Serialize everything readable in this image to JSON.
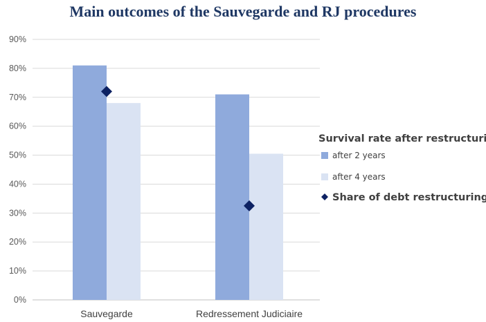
{
  "chart_data": {
    "type": "bar",
    "title": "Main outcomes of the Sauvegarde and RJ procedures",
    "categories": [
      "Sauvegarde",
      "Redressement Judiciaire"
    ],
    "series": [
      {
        "name": "after 2 years",
        "type": "bar",
        "color": "#8faadc",
        "values": [
          81,
          71
        ]
      },
      {
        "name": "after 4 years",
        "type": "bar",
        "color": "#dae3f3",
        "values": [
          68,
          50.5
        ]
      },
      {
        "name": "Share of debt restructuring",
        "type": "marker",
        "marker": "diamond",
        "color": "#0d2263",
        "values": [
          72,
          32.5
        ]
      }
    ],
    "legend_title": "Survival rate after restructuring",
    "legend_position": "right",
    "ylim": [
      0,
      90
    ],
    "yticks": [
      "0%",
      "10%",
      "20%",
      "30%",
      "40%",
      "50%",
      "60%",
      "70%",
      "80%",
      "90%"
    ],
    "grid": true,
    "xlabel": "",
    "ylabel": ""
  }
}
